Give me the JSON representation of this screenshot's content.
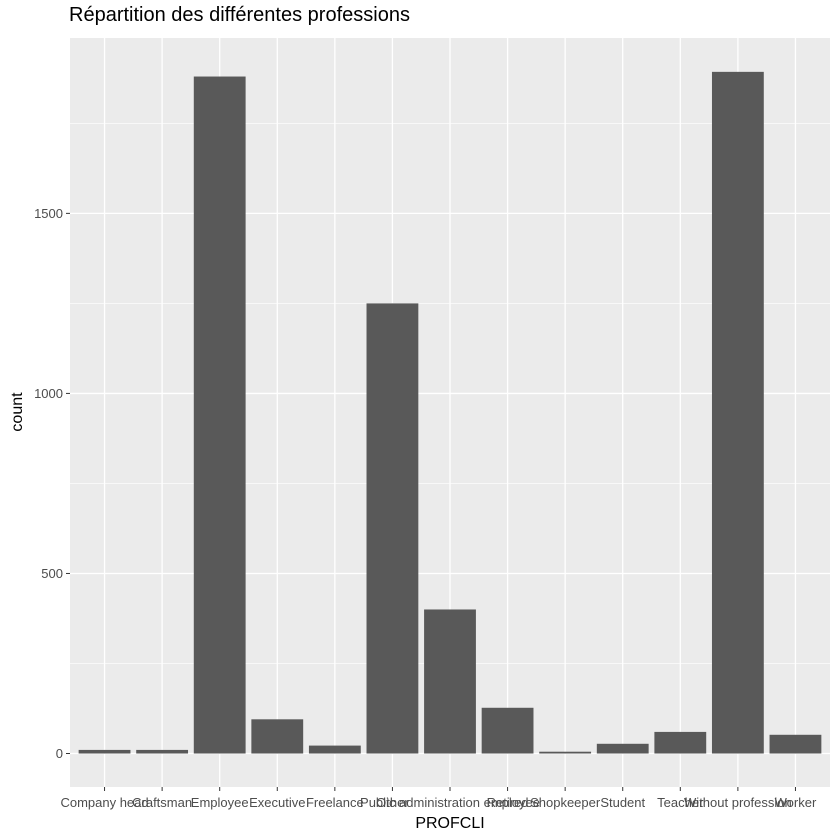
{
  "chart_data": {
    "type": "bar",
    "title": "Répartition des différentes professions",
    "xlabel": "PROFCLI",
    "ylabel": "count",
    "categories": [
      "Company head",
      "Craftsman",
      "Employee",
      "Executive",
      "Freelance",
      "Other",
      "Public administration employee",
      "Retired",
      "Shopkeeper",
      "Student",
      "Teacher",
      "Without profession",
      "Worker"
    ],
    "values": [
      10,
      10,
      1880,
      95,
      22,
      1250,
      400,
      127,
      5,
      27,
      60,
      1893,
      52
    ],
    "yticks": [
      0,
      500,
      1000,
      1500
    ],
    "ylim": [
      -93,
      1987
    ],
    "grid": true,
    "bar_color": "#595959",
    "panel_color": "#ebebeb",
    "grid_color": "#ffffff"
  }
}
